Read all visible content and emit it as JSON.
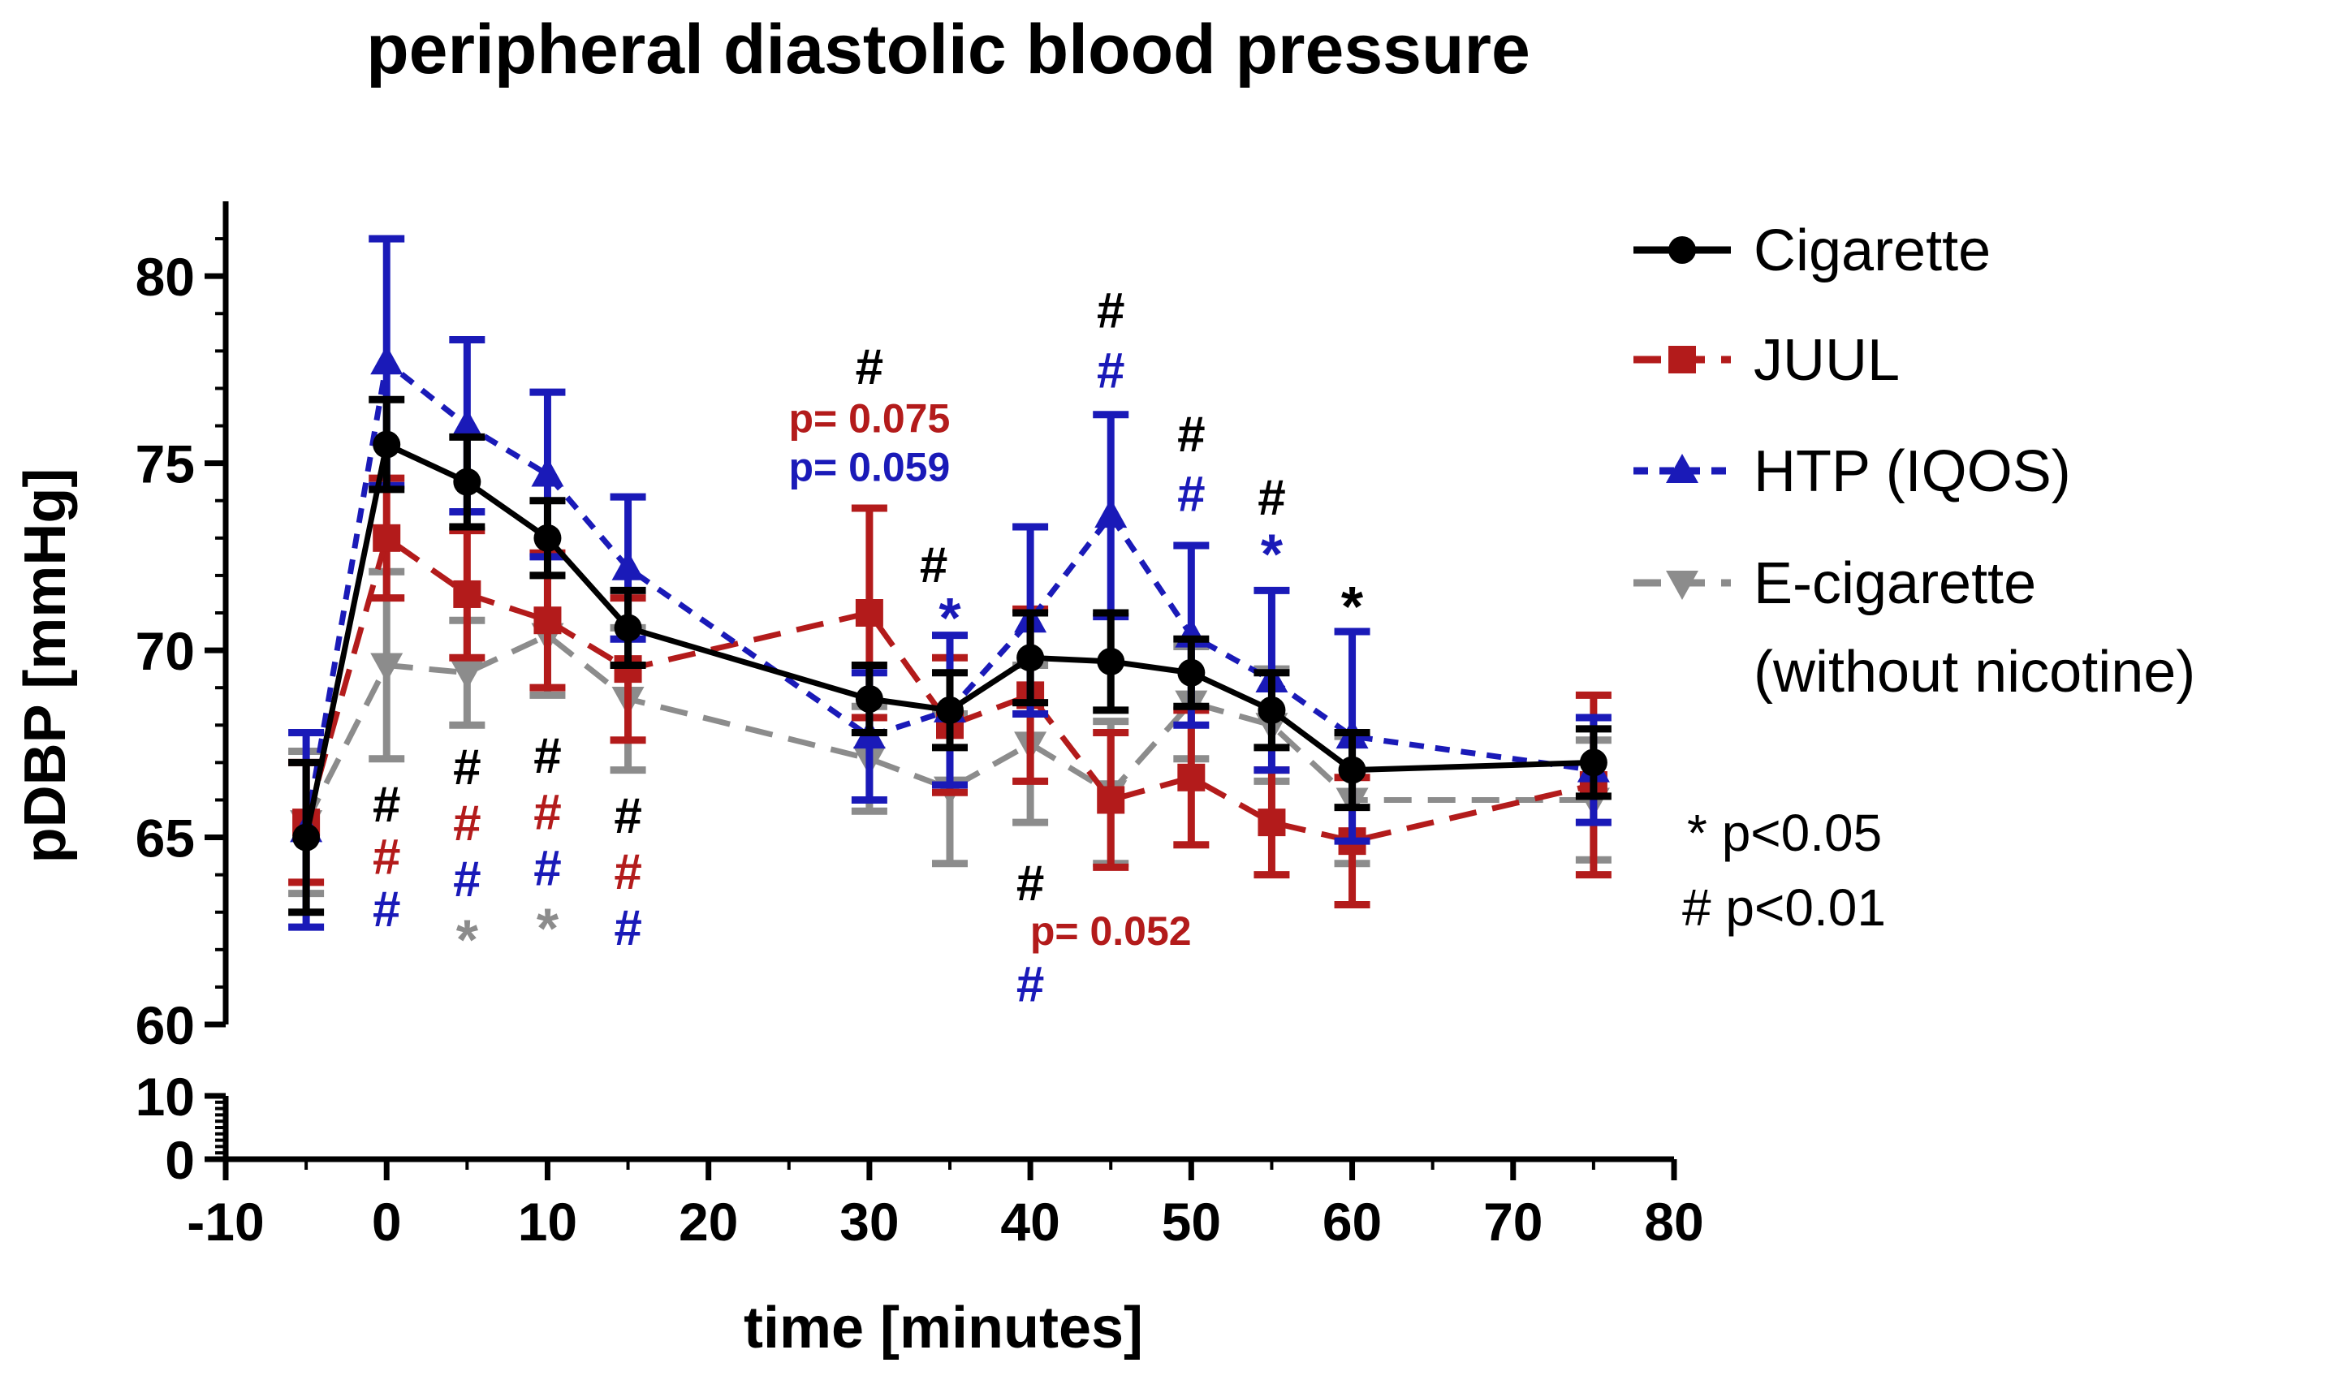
{
  "chart_data": {
    "type": "line",
    "title": "peripheral diastolic blood pressure",
    "xlabel": "time [minutes]",
    "ylabel": "pDBP [mmHg]",
    "xlim": [
      -10,
      80
    ],
    "x_ticks": [
      -10,
      0,
      10,
      20,
      30,
      40,
      50,
      60,
      70,
      80
    ],
    "y_ticks_upper": [
      60,
      65,
      70,
      75,
      80
    ],
    "y_ticks_lower": [
      0,
      10
    ],
    "ylim_upper": [
      60,
      82
    ],
    "ylim_lower": [
      0,
      10
    ],
    "axis_break": true,
    "grid": false,
    "legend_position": "top-right",
    "x": [
      -5,
      0,
      5,
      10,
      15,
      30,
      35,
      40,
      45,
      50,
      55,
      60,
      75
    ],
    "series": [
      {
        "name": "Cigarette",
        "color": "#000000",
        "marker": "circle",
        "line_style": "solid",
        "values": [
          65.0,
          75.5,
          74.5,
          73.0,
          70.6,
          68.7,
          68.4,
          69.8,
          69.7,
          69.4,
          68.4,
          66.8,
          67.0
        ],
        "errors": [
          2.0,
          1.2,
          1.2,
          1.0,
          1.0,
          0.9,
          1.0,
          1.2,
          1.3,
          0.9,
          1.0,
          1.0,
          0.9
        ]
      },
      {
        "name": "JUUL",
        "color": "#b31b1b",
        "marker": "square",
        "line_style": "dashed",
        "values": [
          65.4,
          73.0,
          71.5,
          70.8,
          69.5,
          71.0,
          68.0,
          68.8,
          66.0,
          66.6,
          65.4,
          64.9,
          66.4
        ],
        "errors": [
          1.6,
          1.6,
          1.7,
          1.8,
          1.9,
          2.8,
          1.8,
          2.3,
          1.8,
          1.8,
          1.4,
          1.7,
          2.4
        ]
      },
      {
        "name": "HTP (IQOS)",
        "color": "#1a1ab8",
        "marker": "triangle-up",
        "line_style": "dotted",
        "values": [
          65.2,
          77.7,
          76.0,
          74.7,
          72.2,
          67.7,
          68.4,
          70.8,
          73.6,
          70.4,
          69.2,
          67.7,
          66.8
        ],
        "errors": [
          2.6,
          3.3,
          2.3,
          2.2,
          1.9,
          1.7,
          2.0,
          2.5,
          2.7,
          2.4,
          2.4,
          2.8,
          1.4
        ]
      },
      {
        "name": "E-cigarette (without nicotine)",
        "color": "#8c8c8c",
        "marker": "triangle-down",
        "line_style": "dashed",
        "values": [
          65.4,
          69.6,
          69.4,
          70.4,
          68.7,
          67.1,
          66.3,
          67.5,
          66.2,
          68.6,
          68.0,
          66.0,
          66.0
        ],
        "errors": [
          1.9,
          2.5,
          1.4,
          1.6,
          1.9,
          1.4,
          2.0,
          2.1,
          1.9,
          1.5,
          1.5,
          1.7,
          1.6
        ]
      }
    ],
    "legend": [
      {
        "label": "Cigarette"
      },
      {
        "label": "JUUL"
      },
      {
        "label": "HTP (IQOS)"
      },
      {
        "label": "E-cigarette"
      },
      {
        "label": "(without nicotine)"
      }
    ],
    "significance_key": [
      "* p<0.05",
      "# p<0.01"
    ],
    "annotations": [
      {
        "text": "#",
        "color": "#000000",
        "x": 0,
        "y": 65.9
      },
      {
        "text": "#",
        "color": "#b31b1b",
        "x": 0,
        "y": 64.5
      },
      {
        "text": "#",
        "color": "#1a1ab8",
        "x": 0,
        "y": 63.1
      },
      {
        "text": "#",
        "color": "#000000",
        "x": 5,
        "y": 66.9
      },
      {
        "text": "#",
        "color": "#b31b1b",
        "x": 5,
        "y": 65.4
      },
      {
        "text": "#",
        "color": "#1a1ab8",
        "x": 5,
        "y": 63.9
      },
      {
        "text": "*",
        "color": "#8c8c8c",
        "x": 5,
        "y": 62.4
      },
      {
        "text": "#",
        "color": "#000000",
        "x": 10,
        "y": 67.2
      },
      {
        "text": "#",
        "color": "#b31b1b",
        "x": 10,
        "y": 65.7
      },
      {
        "text": "#",
        "color": "#1a1ab8",
        "x": 10,
        "y": 64.2
      },
      {
        "text": "*",
        "color": "#8c8c8c",
        "x": 10,
        "y": 62.7
      },
      {
        "text": "#",
        "color": "#000000",
        "x": 15,
        "y": 65.6
      },
      {
        "text": "#",
        "color": "#b31b1b",
        "x": 15,
        "y": 64.1
      },
      {
        "text": "#",
        "color": "#1a1ab8",
        "x": 15,
        "y": 62.6
      },
      {
        "text": "#",
        "color": "#000000",
        "x": 30,
        "y": 77.6
      },
      {
        "text": "p= 0.075",
        "color": "#b31b1b",
        "x": 30,
        "y": 76.3
      },
      {
        "text": "p= 0.059",
        "color": "#1a1ab8",
        "x": 30,
        "y": 75.0
      },
      {
        "text": "#",
        "color": "#000000",
        "x": 34,
        "y": 72.3
      },
      {
        "text": "*",
        "color": "#1a1ab8",
        "x": 35,
        "y": 71.0
      },
      {
        "text": "#",
        "color": "#000000",
        "x": 40,
        "y": 63.8
      },
      {
        "text": "p= 0.052",
        "color": "#b31b1b",
        "x": 45,
        "y": 62.6
      },
      {
        "text": "#",
        "color": "#1a1ab8",
        "x": 40,
        "y": 61.1
      },
      {
        "text": "#",
        "color": "#000000",
        "x": 45,
        "y": 79.1
      },
      {
        "text": "#",
        "color": "#1a1ab8",
        "x": 45,
        "y": 77.5
      },
      {
        "text": "#",
        "color": "#000000",
        "x": 50,
        "y": 75.8
      },
      {
        "text": "#",
        "color": "#1a1ab8",
        "x": 50,
        "y": 74.2
      },
      {
        "text": "#",
        "color": "#000000",
        "x": 55,
        "y": 74.1
      },
      {
        "text": "*",
        "color": "#1a1ab8",
        "x": 55,
        "y": 72.7
      },
      {
        "text": "*",
        "color": "#000000",
        "x": 60,
        "y": 71.3
      }
    ]
  }
}
